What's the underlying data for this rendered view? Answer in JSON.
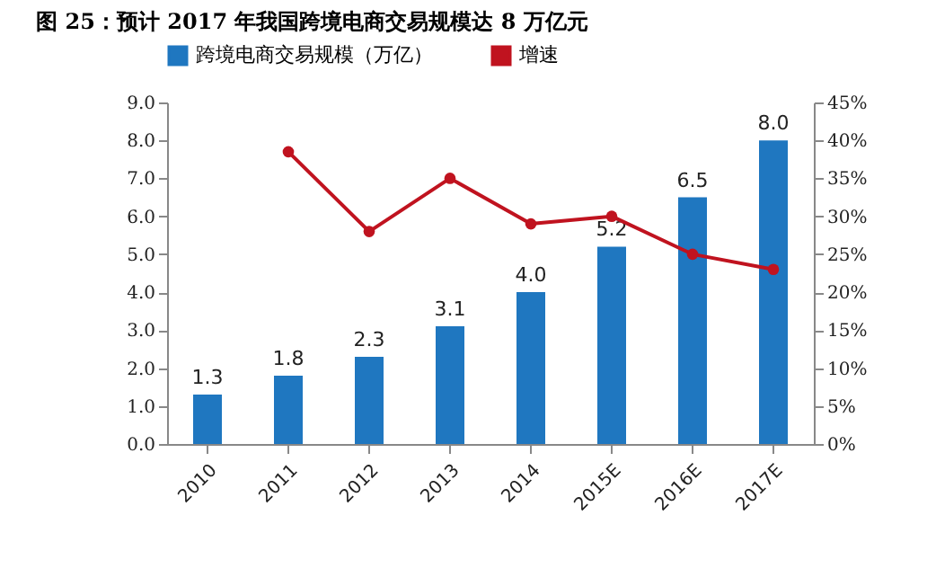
{
  "chart_data": {
    "type": "bar",
    "title": "图 25：预计 2017 年我国跨境电商交易规模达 8 万亿元",
    "categories": [
      "2010",
      "2011",
      "2012",
      "2013",
      "2014",
      "2015E",
      "2016E",
      "2017E"
    ],
    "series": [
      {
        "name": "跨境电商交易规模（万亿）",
        "color": "#1f77c0",
        "values": [
          1.3,
          1.8,
          2.3,
          3.1,
          4.0,
          5.2,
          6.5,
          8.0
        ],
        "value_labels": [
          "1.3",
          "1.8",
          "2.3",
          "3.1",
          "4.0",
          "5.2",
          "6.5",
          "8.0"
        ]
      },
      {
        "name": "增速",
        "type": "line",
        "axis": "y2",
        "color": "#c0131f",
        "marker": "circle",
        "values": [
          null,
          38.5,
          28,
          35,
          29,
          30,
          25,
          23
        ]
      }
    ],
    "ylim": [
      0,
      9
    ],
    "yticks": [
      {
        "value": 0,
        "label": "0.0"
      },
      {
        "value": 1,
        "label": "1.0"
      },
      {
        "value": 2,
        "label": "2.0"
      },
      {
        "value": 3,
        "label": "3.0"
      },
      {
        "value": 4,
        "label": "4.0"
      },
      {
        "value": 5,
        "label": "5.0"
      },
      {
        "value": 6,
        "label": "6.0"
      },
      {
        "value": 7,
        "label": "7.0"
      },
      {
        "value": 8,
        "label": "8.0"
      },
      {
        "value": 9,
        "label": "9.0"
      }
    ],
    "y2lim": [
      0,
      45
    ],
    "y2ticks": [
      {
        "value": 0,
        "label": "0%"
      },
      {
        "value": 5,
        "label": "5%"
      },
      {
        "value": 10,
        "label": "10%"
      },
      {
        "value": 15,
        "label": "15%"
      },
      {
        "value": 20,
        "label": "20%"
      },
      {
        "value": 25,
        "label": "25%"
      },
      {
        "value": 30,
        "label": "30%"
      },
      {
        "value": 35,
        "label": "35%"
      },
      {
        "value": 40,
        "label": "40%"
      },
      {
        "value": 45,
        "label": "45%"
      }
    ],
    "grid": false,
    "legend": "top"
  }
}
